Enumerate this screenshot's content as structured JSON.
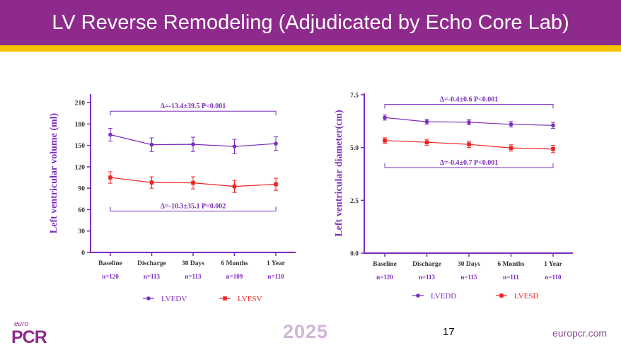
{
  "title": "LV Reverse Remodeling (Adjudicated by Echo Core Lab)",
  "footer": {
    "logo_top": "euro",
    "logo_main": "PCR",
    "year": "2025",
    "page": "17",
    "url": "europcr.com"
  },
  "colors": {
    "purple": "#7b2cbf",
    "red": "#ee2222",
    "title_bg": "#8e2a8b",
    "gold": "#f2c200"
  },
  "chart_data": [
    {
      "type": "line",
      "ylabel": "Left ventricular volume (ml)",
      "ylim": [
        0,
        220
      ],
      "yticks": [
        "0",
        "30",
        "60",
        "90",
        "120",
        "150",
        "180",
        "210"
      ],
      "ytick_values": [
        0,
        30,
        60,
        90,
        120,
        150,
        180,
        210
      ],
      "categories": [
        "Baseline",
        "Discharge",
        "30 Days",
        "6 Months",
        "1 Year"
      ],
      "n_labels": [
        "n=120",
        "n=113",
        "n=113",
        "n=109",
        "n=110"
      ],
      "series": [
        {
          "name": "LVEDV",
          "color": "#7b2cbf",
          "marker": "circle",
          "values": [
            165,
            151,
            151.5,
            148.5,
            152.5
          ],
          "errors": [
            9,
            9.5,
            10,
            10,
            9.5
          ]
        },
        {
          "name": "LVESV",
          "color": "#ee2222",
          "marker": "square",
          "values": [
            105,
            98,
            97.5,
            92.5,
            95.5
          ],
          "errors": [
            8,
            8,
            8.5,
            8.5,
            8.5
          ]
        }
      ],
      "annotations": [
        {
          "text": "Δ=-13.4±39.5   P<0.001",
          "y": 198,
          "tick": "down"
        },
        {
          "text": "Δ=-10.3±35.1   P=0.002",
          "y": 58,
          "tick": "up"
        }
      ]
    },
    {
      "type": "line",
      "ylabel": "Left ventricular diameter(cm)",
      "ylim": [
        0,
        7.5
      ],
      "yticks": [
        "0.0",
        "2.5",
        "5.0",
        "7.5"
      ],
      "ytick_values": [
        0,
        2.5,
        5,
        7.5
      ],
      "categories": [
        "Baseline",
        "Discharge",
        "30 Days",
        "6 Months",
        "1 Year"
      ],
      "n_labels": [
        "n=120",
        "n=113",
        "n=115",
        "n=111",
        "n=110"
      ],
      "series": [
        {
          "name": "LVEDD",
          "color": "#7b2cbf",
          "marker": "circle",
          "values": [
            6.42,
            6.22,
            6.2,
            6.1,
            6.05
          ],
          "errors": [
            0.12,
            0.12,
            0.12,
            0.13,
            0.14
          ]
        },
        {
          "name": "LVESD",
          "color": "#ee2222",
          "marker": "square",
          "values": [
            5.33,
            5.25,
            5.15,
            4.98,
            4.93
          ],
          "errors": [
            0.13,
            0.14,
            0.15,
            0.15,
            0.17
          ]
        }
      ],
      "annotations": [
        {
          "text": "Δ=-0.4±0.6   P<0.001",
          "y": 7.05,
          "tick": "down"
        },
        {
          "text": "Δ=-0.4±0.7   P<0.001",
          "y": 4.05,
          "tick": "up"
        }
      ]
    }
  ]
}
